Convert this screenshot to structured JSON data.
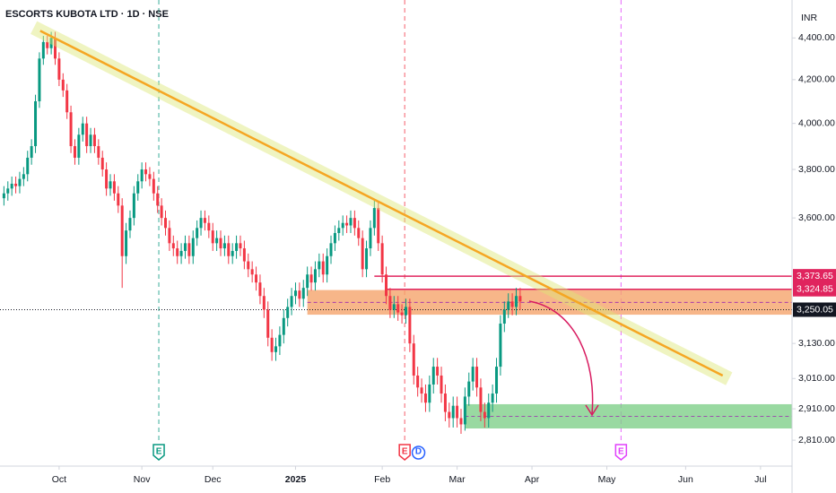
{
  "chart_data": {
    "type": "candlestick",
    "title": "ESCORTS KUBOTA LTD · 1D · NSE",
    "currency": "INR",
    "up_color": "#089981",
    "down_color": "#f23645",
    "log_scale": true,
    "xlim": [
      -1,
      200
    ],
    "ylim": [
      2730,
      4590
    ],
    "xticks": [
      {
        "value": 14,
        "label": "Oct"
      },
      {
        "value": 35,
        "label": "Nov"
      },
      {
        "value": 53,
        "label": "Dec"
      },
      {
        "value": 74,
        "label": "2025"
      },
      {
        "value": 96,
        "label": "Feb"
      },
      {
        "value": 115,
        "label": "Mar"
      },
      {
        "value": 134,
        "label": "Apr"
      },
      {
        "value": 153,
        "label": "May"
      },
      {
        "value": 173,
        "label": "Jun"
      },
      {
        "value": 192,
        "label": "Jul"
      }
    ],
    "yticks": [
      {
        "value": 4400,
        "label": "4,400.00"
      },
      {
        "value": 4200,
        "label": "4,200.00"
      },
      {
        "value": 4000,
        "label": "4,000.00"
      },
      {
        "value": 3800,
        "label": "3,800.00"
      },
      {
        "value": 3600,
        "label": "3,600.00"
      },
      {
        "value": 3130,
        "label": "3,130.00"
      },
      {
        "value": 3010,
        "label": "3,010.00"
      },
      {
        "value": 2910,
        "label": "2,910.00"
      },
      {
        "value": 2810,
        "label": "2,810.00"
      }
    ],
    "open": [
      3680,
      3700,
      3720,
      3740,
      3730,
      3760,
      3780,
      3850,
      3900,
      4100,
      4300,
      4380,
      4350,
      4400,
      4300,
      4200,
      4150,
      4050,
      3900,
      3850,
      3950,
      4000,
      3900,
      3950,
      3900,
      3850,
      3800,
      3720,
      3750,
      3700,
      3650,
      3450,
      3550,
      3600,
      3700,
      3750,
      3800,
      3780,
      3760,
      3700,
      3650,
      3600,
      3560,
      3500,
      3480,
      3450,
      3470,
      3500,
      3450,
      3520,
      3560,
      3600,
      3580,
      3550,
      3500,
      3520,
      3480,
      3500,
      3450,
      3470,
      3500,
      3480,
      3430,
      3400,
      3380,
      3350,
      3300,
      3250,
      3150,
      3100,
      3120,
      3160,
      3220,
      3260,
      3300,
      3320,
      3290,
      3330,
      3380,
      3350,
      3400,
      3430,
      3380,
      3450,
      3500,
      3540,
      3560,
      3580,
      3570,
      3600,
      3560,
      3520,
      3400,
      3480,
      3560,
      3640,
      3500,
      3380,
      3300,
      3250,
      3270,
      3240,
      3230,
      3260,
      3130,
      3020,
      2980,
      2960,
      2930,
      2990,
      3050,
      3020,
      2960,
      2900,
      2880,
      2920,
      2880,
      2860,
      2950,
      3000,
      3050,
      2980,
      2900,
      2880,
      2930,
      2960,
      3050,
      3200,
      3250,
      3280,
      3260,
      3300
    ],
    "high": [
      3730,
      3750,
      3770,
      3770,
      3790,
      3810,
      3880,
      3930,
      4130,
      4330,
      4410,
      4410,
      4430,
      4430,
      4330,
      4230,
      4180,
      4080,
      3930,
      3980,
      4030,
      4030,
      3980,
      3980,
      3930,
      3880,
      3830,
      3780,
      3780,
      3730,
      3680,
      3580,
      3630,
      3730,
      3780,
      3830,
      3830,
      3810,
      3790,
      3730,
      3680,
      3630,
      3590,
      3530,
      3510,
      3500,
      3530,
      3530,
      3550,
      3590,
      3630,
      3630,
      3610,
      3580,
      3550,
      3550,
      3530,
      3530,
      3500,
      3530,
      3530,
      3510,
      3460,
      3430,
      3410,
      3380,
      3330,
      3280,
      3180,
      3150,
      3190,
      3250,
      3290,
      3330,
      3350,
      3350,
      3360,
      3410,
      3410,
      3430,
      3460,
      3460,
      3480,
      3530,
      3570,
      3590,
      3610,
      3610,
      3630,
      3630,
      3590,
      3550,
      3510,
      3590,
      3670,
      3670,
      3530,
      3410,
      3330,
      3300,
      3300,
      3270,
      3290,
      3290,
      3160,
      3050,
      3010,
      2990,
      3020,
      3080,
      3080,
      3050,
      2990,
      2930,
      2950,
      2950,
      2910,
      2980,
      3030,
      3080,
      3080,
      3010,
      2930,
      2960,
      2990,
      3080,
      3230,
      3280,
      3310,
      3310,
      3330,
      3330
    ],
    "low": [
      3650,
      3670,
      3690,
      3700,
      3700,
      3730,
      3750,
      3820,
      3870,
      4070,
      4270,
      4320,
      4320,
      4270,
      4170,
      4120,
      4020,
      3870,
      3820,
      3820,
      3920,
      3870,
      3870,
      3870,
      3820,
      3770,
      3690,
      3690,
      3670,
      3620,
      3330,
      3420,
      3520,
      3570,
      3670,
      3720,
      3750,
      3730,
      3670,
      3620,
      3570,
      3530,
      3470,
      3450,
      3420,
      3420,
      3440,
      3420,
      3420,
      3490,
      3530,
      3550,
      3520,
      3470,
      3470,
      3450,
      3450,
      3420,
      3420,
      3440,
      3450,
      3400,
      3370,
      3350,
      3320,
      3270,
      3220,
      3120,
      3070,
      3070,
      3090,
      3130,
      3190,
      3230,
      3270,
      3260,
      3260,
      3300,
      3320,
      3320,
      3370,
      3350,
      3350,
      3420,
      3470,
      3510,
      3530,
      3540,
      3540,
      3530,
      3490,
      3370,
      3370,
      3450,
      3530,
      3470,
      3350,
      3270,
      3220,
      3220,
      3210,
      3200,
      3200,
      3100,
      2990,
      2950,
      2930,
      2900,
      2900,
      2960,
      2990,
      2930,
      2870,
      2850,
      2850,
      2850,
      2830,
      2840,
      2920,
      2970,
      2950,
      2870,
      2850,
      2850,
      2900,
      2930,
      3020,
      3170,
      3220,
      3230,
      3230,
      3250
    ],
    "close": [
      3700,
      3720,
      3740,
      3730,
      3760,
      3780,
      3850,
      3900,
      4100,
      4300,
      4380,
      4350,
      4400,
      4300,
      4200,
      4150,
      4050,
      3900,
      3850,
      3950,
      4000,
      3900,
      3950,
      3900,
      3850,
      3800,
      3720,
      3750,
      3700,
      3650,
      3450,
      3550,
      3600,
      3700,
      3750,
      3800,
      3780,
      3760,
      3700,
      3650,
      3600,
      3560,
      3500,
      3480,
      3450,
      3470,
      3500,
      3450,
      3520,
      3560,
      3600,
      3580,
      3550,
      3500,
      3520,
      3480,
      3500,
      3450,
      3470,
      3500,
      3480,
      3430,
      3400,
      3380,
      3350,
      3300,
      3250,
      3150,
      3100,
      3120,
      3160,
      3220,
      3260,
      3300,
      3320,
      3290,
      3330,
      3380,
      3350,
      3400,
      3430,
      3380,
      3450,
      3500,
      3540,
      3560,
      3580,
      3570,
      3600,
      3560,
      3520,
      3400,
      3480,
      3560,
      3640,
      3500,
      3380,
      3300,
      3250,
      3270,
      3240,
      3230,
      3260,
      3130,
      3020,
      2980,
      2960,
      2930,
      2990,
      3050,
      3020,
      2960,
      2900,
      2880,
      2920,
      2880,
      2860,
      2950,
      3000,
      3050,
      2980,
      2900,
      2880,
      2930,
      2960,
      3050,
      3200,
      3250,
      3280,
      3260,
      3300,
      3280
    ],
    "price_lines": [
      {
        "value": 3373.65,
        "label": "3,373.65",
        "color": "#e0245e",
        "from": 94
      },
      {
        "value": 3324.85,
        "label": "3,324.85",
        "color": "#e0245e",
        "from": 97
      },
      {
        "value": 3250.05,
        "label": "3,250.05",
        "color": "#131722"
      }
    ],
    "zones": [
      {
        "from": 77,
        "top": 3322,
        "bottom": 3232,
        "color": "#f5a46b"
      },
      {
        "from": 117,
        "top": 2925,
        "bottom": 2847,
        "color": "#7fcf8a"
      }
    ],
    "trendline": {
      "x": [
        9.2,
        182.4
      ],
      "y": [
        4435,
        3020
      ],
      "color": "#f5a623"
    },
    "events": [
      {
        "x": 39.3,
        "label": "E",
        "color": "#089981"
      },
      {
        "x": 101.7,
        "label": "E",
        "color": "#f23645"
      },
      {
        "x": 105.2,
        "label": "D",
        "color": "#2962ff"
      },
      {
        "x": 156.6,
        "label": "E",
        "color": "#e040fb"
      }
    ]
  }
}
